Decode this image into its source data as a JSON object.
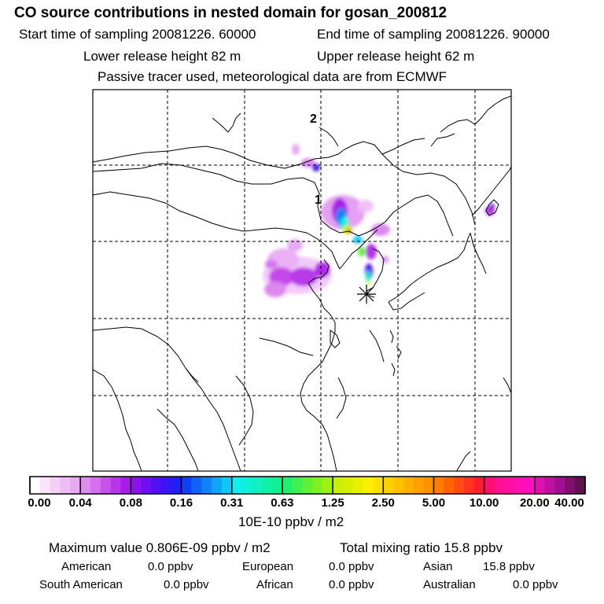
{
  "header": {
    "title": "CO  source contributions in nested domain for gosan_200812",
    "start_time": "Start time of sampling 20081226. 60000",
    "end_time": "End time of sampling 20081226. 90000",
    "lower_release": "Lower release height   82 m",
    "upper_release": "Upper release height   62 m",
    "tracer_note": "Passive tracer used, meteorological data are from ECMWF"
  },
  "map": {
    "label_1": "1",
    "label_2": "2",
    "receptor_marker": "star-icon"
  },
  "colorbar": {
    "ticks": [
      "0.00",
      "0.04",
      "0.08",
      "0.16",
      "0.31",
      "0.63",
      "1.25",
      "2.50",
      "5.00",
      "10.00",
      "20.00",
      "40.00"
    ],
    "unit": "10E-10 ppbv / m2",
    "colors": [
      "#ffffff",
      "#f9e3fb",
      "#f4cff8",
      "#eebcf5",
      "#e9a8f2",
      "#df8cef",
      "#d470ed",
      "#c552eb",
      "#b636ea",
      "#a81ce8",
      "#8a12ea",
      "#6e10ee",
      "#5210f2",
      "#3a14f4",
      "#2020f6",
      "#1040f8",
      "#1062f8",
      "#1084f8",
      "#10a6f8",
      "#10c8f8",
      "#10f0f0",
      "#10f0d8",
      "#10f0c0",
      "#10f0a8",
      "#10f090",
      "#20f070",
      "#40f050",
      "#60f038",
      "#80f020",
      "#a0f010",
      "#c8f008",
      "#d8f000",
      "#e8f000",
      "#f8f000",
      "#ffe000",
      "#ffd000",
      "#ffc000",
      "#ffb000",
      "#ffa000",
      "#ff9000",
      "#ff7c00",
      "#ff6400",
      "#ff4c10",
      "#ff3420",
      "#ff1c30",
      "#ff1070",
      "#ff1090",
      "#ff10a0",
      "#ff10b0",
      "#ff10c0",
      "#e010b0",
      "#c010a0",
      "#a01090",
      "#801070",
      "#601050"
    ]
  },
  "summary": {
    "maximum": "Maximum value  0.806E-09 ppbv / m2",
    "total": "Total mixing ratio       15.8 ppbv",
    "rows": [
      [
        {
          "label": "American",
          "value": "0.0 ppbv"
        },
        {
          "label": "European",
          "value": "0.0 ppbv"
        },
        {
          "label": "Asian",
          "value": "15.8 ppbv"
        }
      ],
      [
        {
          "label": "South American",
          "value": "0.0 ppbv"
        },
        {
          "label": "African",
          "value": "0.0 ppbv"
        },
        {
          "label": "Australian",
          "value": "0.0 ppbv"
        }
      ]
    ]
  }
}
